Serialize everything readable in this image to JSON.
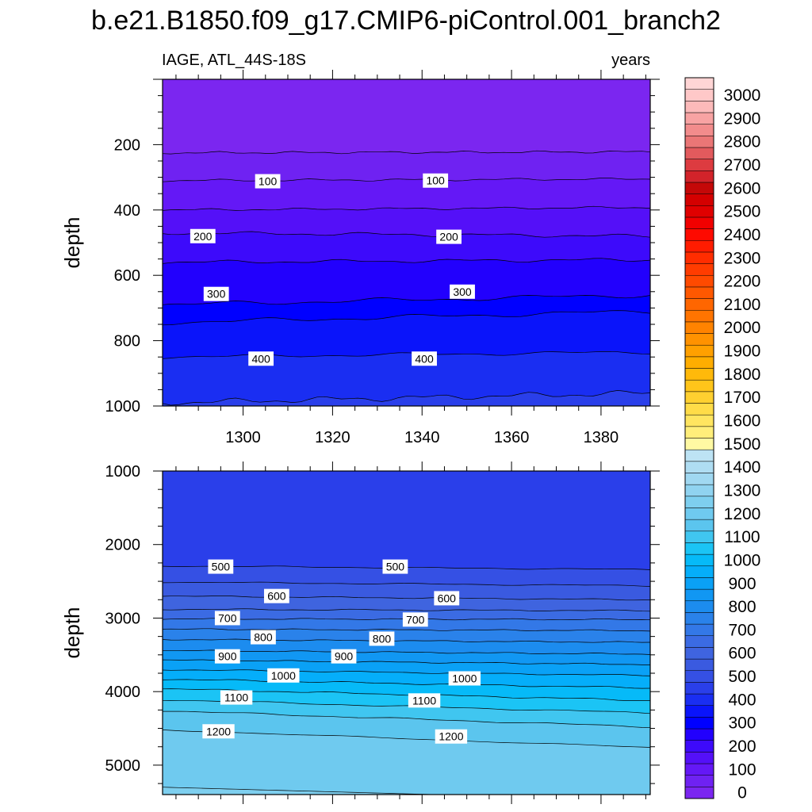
{
  "figure": {
    "title": "b.e21.B1850.f09_g17.CMIP6-piControl.001_branch2",
    "left_subtitle": "IAGE, ATL_44S-18S",
    "right_subtitle": "years"
  },
  "chart_data": [
    {
      "type": "contour",
      "panel": "upper",
      "xlabel": "",
      "ylabel": "depth",
      "xlim": [
        1282,
        1391
      ],
      "ylim": [
        1000,
        0
      ],
      "x_ticks": [
        1300,
        1320,
        1340,
        1360,
        1380
      ],
      "x_tick_labels": [
        "1300",
        "1320",
        "1340",
        "1360",
        "1380"
      ],
      "y_ticks": [
        200,
        400,
        600,
        800,
        1000
      ],
      "y_tick_labels": [
        "200",
        "400",
        "600",
        "800",
        "1000"
      ],
      "contours": [
        {
          "level": 50,
          "left": 225,
          "right": 222,
          "amp": 4,
          "freq": 6,
          "phase": 0.5
        },
        {
          "level": 100,
          "left": 310,
          "right": 305,
          "amp": 4,
          "freq": 5,
          "phase": 1.2
        },
        {
          "level": 150,
          "left": 400,
          "right": 392,
          "amp": 4,
          "freq": 5,
          "phase": 2.1
        },
        {
          "level": 200,
          "left": 470,
          "right": 480,
          "amp": 6,
          "freq": 4,
          "phase": 0.3
        },
        {
          "level": 250,
          "left": 560,
          "right": 552,
          "amp": 6,
          "freq": 4,
          "phase": 1.7
        },
        {
          "level": 300,
          "left": 690,
          "right": 660,
          "amp": 8,
          "freq": 3,
          "phase": 2.5
        },
        {
          "level": 350,
          "left": 745,
          "right": 710,
          "amp": 8,
          "freq": 3,
          "phase": 0.9
        },
        {
          "level": 400,
          "left": 850,
          "right": 835,
          "amp": 6,
          "freq": 3,
          "phase": 1.4
        },
        {
          "level": 450,
          "left": 990,
          "right": 960,
          "amp": 10,
          "freq": 5,
          "phase": 0.2
        }
      ],
      "labels": [
        {
          "text": "100",
          "x": 1305.5,
          "y": 312
        },
        {
          "text": "100",
          "x": 1343.0,
          "y": 310
        },
        {
          "text": "200",
          "x": 1291.0,
          "y": 480
        },
        {
          "text": "200",
          "x": 1346.0,
          "y": 482
        },
        {
          "text": "300",
          "x": 1294.0,
          "y": 657
        },
        {
          "text": "300",
          "x": 1349.0,
          "y": 650
        },
        {
          "text": "400",
          "x": 1304.0,
          "y": 855
        },
        {
          "text": "400",
          "x": 1340.5,
          "y": 855
        }
      ]
    },
    {
      "type": "contour",
      "panel": "lower",
      "xlabel": "",
      "ylabel": "depth",
      "xlim": [
        1282,
        1391
      ],
      "ylim": [
        5400,
        1000
      ],
      "x_ticks": [
        1300,
        1320,
        1340,
        1360,
        1380
      ],
      "y_ticks": [
        1000,
        2000,
        3000,
        4000,
        5000
      ],
      "y_tick_labels": [
        "1000",
        "2000",
        "3000",
        "4000",
        "5000"
      ],
      "contours": [
        {
          "level": 500,
          "left": 2290,
          "right": 2340,
          "amp": 10,
          "freq": 3,
          "phase": 0.4
        },
        {
          "level": 550,
          "left": 2510,
          "right": 2560,
          "amp": 10,
          "freq": 3,
          "phase": 1.1
        },
        {
          "level": 600,
          "left": 2700,
          "right": 2750,
          "amp": 10,
          "freq": 4,
          "phase": 2.0
        },
        {
          "level": 650,
          "left": 2880,
          "right": 2900,
          "amp": 10,
          "freq": 4,
          "phase": 0.7
        },
        {
          "level": 700,
          "left": 3010,
          "right": 3020,
          "amp": 10,
          "freq": 5,
          "phase": 1.5
        },
        {
          "level": 750,
          "left": 3150,
          "right": 3170,
          "amp": 10,
          "freq": 5,
          "phase": 2.4
        },
        {
          "level": 800,
          "left": 3290,
          "right": 3330,
          "amp": 10,
          "freq": 5,
          "phase": 0.1
        },
        {
          "level": 850,
          "left": 3440,
          "right": 3490,
          "amp": 10,
          "freq": 5,
          "phase": 1.9
        },
        {
          "level": 900,
          "left": 3570,
          "right": 3630,
          "amp": 10,
          "freq": 5,
          "phase": 2.8
        },
        {
          "level": 950,
          "left": 3700,
          "right": 3780,
          "amp": 10,
          "freq": 4,
          "phase": 0.6
        },
        {
          "level": 1000,
          "left": 3830,
          "right": 3950,
          "amp": 12,
          "freq": 4,
          "phase": 1.3
        },
        {
          "level": 1050,
          "left": 3960,
          "right": 4120,
          "amp": 12,
          "freq": 4,
          "phase": 2.2
        },
        {
          "level": 1100,
          "left": 4110,
          "right": 4290,
          "amp": 12,
          "freq": 3,
          "phase": 0.8
        },
        {
          "level": 1150,
          "left": 4260,
          "right": 4480,
          "amp": 12,
          "freq": 3,
          "phase": 1.6
        },
        {
          "level": 1200,
          "left": 4520,
          "right": 4760,
          "amp": 8,
          "freq": 2,
          "phase": 0.0
        },
        {
          "level": 1250,
          "left": 5300,
          "right": 5480,
          "amp": 0,
          "freq": 1,
          "phase": 0.0
        }
      ],
      "labels": [
        {
          "text": "500",
          "x": 1295.0,
          "y": 2300
        },
        {
          "text": "500",
          "x": 1334.0,
          "y": 2300
        },
        {
          "text": "600",
          "x": 1307.5,
          "y": 2700
        },
        {
          "text": "600",
          "x": 1345.5,
          "y": 2730
        },
        {
          "text": "700",
          "x": 1296.5,
          "y": 3000
        },
        {
          "text": "700",
          "x": 1338.5,
          "y": 3020
        },
        {
          "text": "800",
          "x": 1304.5,
          "y": 3260
        },
        {
          "text": "800",
          "x": 1331.0,
          "y": 3280
        },
        {
          "text": "900",
          "x": 1296.5,
          "y": 3520
        },
        {
          "text": "900",
          "x": 1322.5,
          "y": 3520
        },
        {
          "text": "1000",
          "x": 1309.0,
          "y": 3780
        },
        {
          "text": "1000",
          "x": 1349.5,
          "y": 3820
        },
        {
          "text": "1100",
          "x": 1298.5,
          "y": 4080
        },
        {
          "text": "1100",
          "x": 1340.5,
          "y": 4120
        },
        {
          "text": "1200",
          "x": 1294.5,
          "y": 4540
        },
        {
          "text": "1200",
          "x": 1346.5,
          "y": 4610
        }
      ]
    },
    {
      "type": "colorbar",
      "min": 0,
      "max": 3100,
      "interval": 50,
      "tick_labels": [
        "0",
        "100",
        "200",
        "300",
        "400",
        "500",
        "600",
        "700",
        "800",
        "900",
        "1000",
        "1100",
        "1200",
        "1300",
        "1400",
        "1500",
        "1600",
        "1700",
        "1800",
        "1900",
        "2000",
        "2100",
        "2200",
        "2300",
        "2400",
        "2500",
        "2600",
        "2700",
        "2800",
        "2900",
        "3000"
      ],
      "colors": [
        "#7b26f0",
        "#6f22f2",
        "#6418f6",
        "#5410f8",
        "#3d0afb",
        "#2200fd",
        "#0000ff",
        "#0a14fa",
        "#1a2ef2",
        "#2a3fea",
        "#3550e4",
        "#3a5ae0",
        "#3f64df",
        "#3b6be3",
        "#3378e7",
        "#2a82ea",
        "#1c8cef",
        "#1197f3",
        "#0aa1f6",
        "#05aefa",
        "#06baf8",
        "#1bc4f5",
        "#40c6f0",
        "#5bc5ee",
        "#6fcaef",
        "#7ecfef",
        "#90d3f0",
        "#a0d8f1",
        "#afddf2",
        "#bde3f4",
        "#fff9a3",
        "#ffee7a",
        "#ffe560",
        "#ffdc48",
        "#ffd030",
        "#ffc51a",
        "#ffb90a",
        "#ffad00",
        "#ffa000",
        "#ff9200",
        "#ff8300",
        "#ff7400",
        "#ff6600",
        "#ff5800",
        "#ff4a00",
        "#ff3c00",
        "#ff2d00",
        "#ff1c00",
        "#fe0a00",
        "#f10000",
        "#e00000",
        "#d40000",
        "#c40808",
        "#d2232a",
        "#dd3b40",
        "#e25a5d",
        "#ea7676",
        "#f28c8c",
        "#f8a3a3",
        "#fcbaba",
        "#ffc8c8",
        "#ffd5d5"
      ]
    }
  ]
}
